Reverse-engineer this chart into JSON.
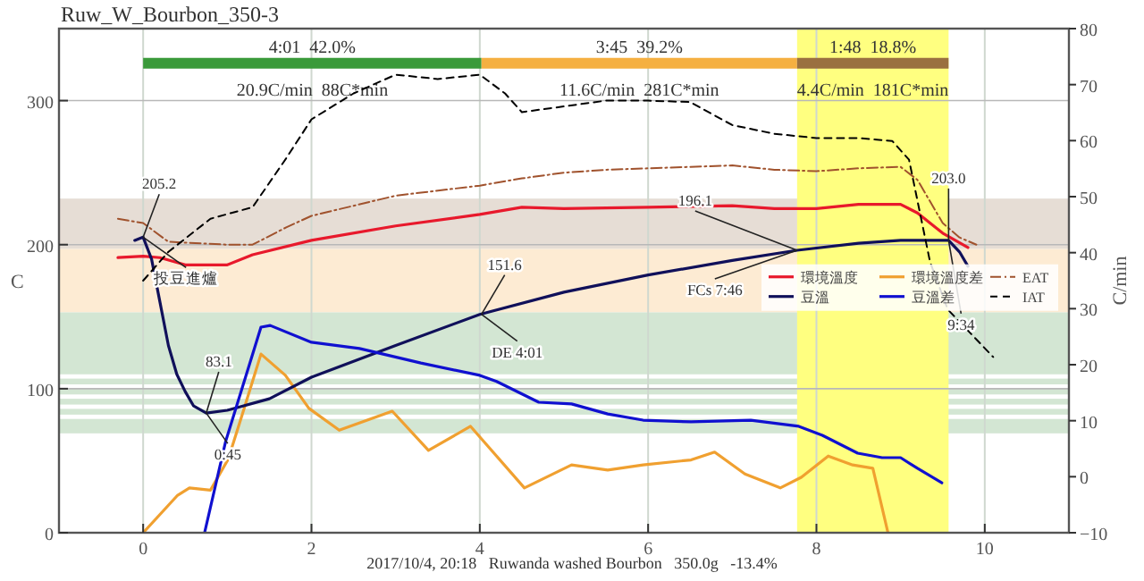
{
  "chart_data": {
    "type": "line",
    "title": "Ruw_W_Bourbon_350-3",
    "ylabel": "C",
    "y2label": "C/min",
    "xlim": [
      -1,
      11
    ],
    "xticks": [
      0,
      2,
      4,
      6,
      8,
      10
    ],
    "ylim": [
      0,
      350
    ],
    "yticks": [
      0,
      100,
      200,
      300
    ],
    "y2lim": [
      -10,
      80
    ],
    "y2ticks": [
      {
        "value": -10,
        "label": "−10"
      },
      0,
      10,
      20,
      30,
      40,
      50,
      60,
      70,
      80
    ],
    "grid": true,
    "legend": "right",
    "line_style": "solid",
    "series": [
      {
        "name": "環境溫度",
        "color": "#e8192c",
        "x": [
          -0.3,
          0,
          0.2,
          0.5,
          1,
          1.3,
          2,
          3,
          4,
          4.5,
          5,
          6,
          7,
          7.5,
          8,
          8.5,
          9,
          9.2,
          9.5,
          9.8
        ],
        "values": [
          191,
          192,
          191,
          186,
          186,
          193,
          203,
          213,
          221,
          226,
          225,
          226,
          227,
          225,
          225,
          228,
          228,
          222,
          208,
          198
        ]
      },
      {
        "name": "環境溫度差",
        "color": "#f0a030",
        "axis": "y2",
        "x": [
          0,
          0.41,
          0.55,
          0.8,
          1.01,
          1.19,
          1.4,
          1.69,
          1.97,
          2.33,
          2.96,
          3.39,
          3.89,
          4.53,
          5.09,
          5.52,
          5.94,
          6.51,
          6.79,
          7.15,
          7.57,
          7.82,
          8.14,
          8.43,
          8.67,
          8.85
        ],
        "values": [
          -10,
          -3.3,
          -2,
          -2.4,
          3.1,
          11.7,
          21.9,
          18.1,
          12.2,
          8.3,
          11.7,
          4.7,
          9,
          -2,
          2.1,
          1.2,
          2.1,
          3,
          4.4,
          0.5,
          -2,
          -0.1,
          3.7,
          2.1,
          1.5,
          -10
        ]
      },
      {
        "name": "EAT",
        "color": "#a0522d",
        "line_style": "dashdot",
        "x": [
          -0.3,
          0,
          0.3,
          1,
          1.3,
          1.7,
          2,
          3,
          4,
          4.5,
          5,
          5.5,
          6,
          7,
          7.5,
          8,
          8.5,
          9,
          9.2,
          9.5,
          9.7,
          9.9
        ],
        "values": [
          218,
          215,
          202,
          200,
          200,
          212,
          220,
          234,
          241,
          246,
          250,
          252,
          253,
          255,
          252,
          251,
          253,
          254,
          245,
          215,
          205,
          200
        ]
      },
      {
        "name": "豆溫",
        "color": "#10105a",
        "x": [
          -0.1,
          0,
          0.1,
          0.2,
          0.3,
          0.4,
          0.5,
          0.6,
          0.75,
          1,
          1.5,
          2,
          3,
          4,
          5,
          6,
          7,
          7.77,
          8.5,
          9,
          9.57,
          9.7,
          9.8
        ],
        "values": [
          203,
          205.2,
          190,
          160,
          130,
          110,
          98,
          88,
          83.1,
          85,
          93,
          108,
          130,
          151.6,
          167,
          179,
          189,
          196.1,
          201,
          203,
          203,
          195,
          185
        ]
      },
      {
        "name": "豆溫差",
        "color": "#1010d0",
        "axis": "y2",
        "x": [
          0.73,
          0.98,
          1.4,
          1.51,
          2,
          2.57,
          3.3,
          4,
          4.2,
          4.7,
          5.09,
          5.52,
          5.94,
          6.51,
          7.22,
          7.79,
          8.07,
          8.49,
          8.78,
          9,
          9.2,
          9.49
        ],
        "values": [
          -10,
          6.3,
          26.7,
          27,
          24,
          22.9,
          20.3,
          18.1,
          17,
          13.3,
          13,
          11.2,
          10.1,
          9.8,
          10.1,
          9,
          7.4,
          4.2,
          3.4,
          3.4,
          1.5,
          -1.1
        ]
      },
      {
        "type": "line",
        "color": "#3a9a3a",
        "x": [
          0,
          4.02
        ],
        "values": [
          326,
          326
        ]
      },
      {
        "type": "line",
        "color": "#f5b041",
        "x": [
          4.02,
          7.77
        ],
        "values": [
          326,
          326
        ]
      },
      {
        "type": "line",
        "color": "#9a7040",
        "x": [
          7.77,
          9.57
        ],
        "values": [
          326,
          326
        ]
      },
      {
        "name": "IAT",
        "color": "#000000",
        "line_style": "dashed",
        "x": [
          0,
          0.3,
          0.8,
          1.3,
          1.7,
          2,
          2.5,
          3,
          3.5,
          4,
          4.3,
          4.5,
          5,
          5.5,
          6,
          6.5,
          7,
          7.5,
          8,
          8.5,
          8.9,
          9.1,
          9.35,
          9.56,
          10.1
        ],
        "values": [
          175,
          195,
          218,
          226,
          260,
          287,
          305,
          318,
          315,
          318,
          305,
          292,
          296,
          300,
          300,
          299,
          283,
          277,
          274,
          274,
          272,
          259,
          188,
          155,
          122
        ]
      }
    ],
    "bands": [
      {
        "axis": "y",
        "from": 197,
        "to": 232,
        "color": "#e6ddd5"
      },
      {
        "axis": "y",
        "from": 153,
        "to": 197,
        "color": "#fdebd3"
      },
      {
        "axis": "y",
        "from": 110,
        "to": 153,
        "color": "#d3e6d3"
      },
      {
        "axis": "y",
        "from": 103,
        "to": 107,
        "color": "#d3e6d3"
      },
      {
        "axis": "y",
        "from": 96,
        "to": 100,
        "color": "#d3e6d3"
      },
      {
        "axis": "y",
        "from": 89,
        "to": 93,
        "color": "#d3e6d3"
      },
      {
        "axis": "y",
        "from": 82,
        "to": 86,
        "color": "#d3e6d3"
      },
      {
        "axis": "y",
        "from": 69,
        "to": 79,
        "color": "#d3e6d3"
      },
      {
        "axis": "x",
        "from": 7.77,
        "to": 9.57,
        "color": "#ffff80"
      }
    ],
    "annotations": [
      "4:01  42.0%",
      "20.9C/min  88C*min",
      "3:45  39.2%",
      "11.6C/min  281C*min",
      "1:48  18.8%",
      "4.4C/min  181C*min",
      {
        "text": "205.2",
        "x": 0,
        "y": 205.2
      },
      {
        "text": "投豆進爐",
        "x": 0,
        "y": 205.2
      },
      {
        "text": "83.1",
        "x": 0.75,
        "y": 83.1
      },
      {
        "text": "0:45",
        "x": 0.75,
        "y": 83.1
      },
      {
        "text": "151.6",
        "x": 4.02,
        "y": 151.6
      },
      {
        "text": "DE 4:01",
        "x": 4.02,
        "y": 151.6
      },
      {
        "text": "196.1",
        "x": 7.77,
        "y": 196.1
      },
      {
        "text": "FCs 7:46",
        "x": 7.77,
        "y": 196.1
      },
      {
        "text": "203.0",
        "x": 9.57,
        "y": 203.0
      },
      {
        "text": "9:34",
        "x": 9.57,
        "y": 203.0
      },
      "2017/10/4, 20:18   Ruwanda washed Bourbon   350.0g   -13.4%"
    ]
  }
}
